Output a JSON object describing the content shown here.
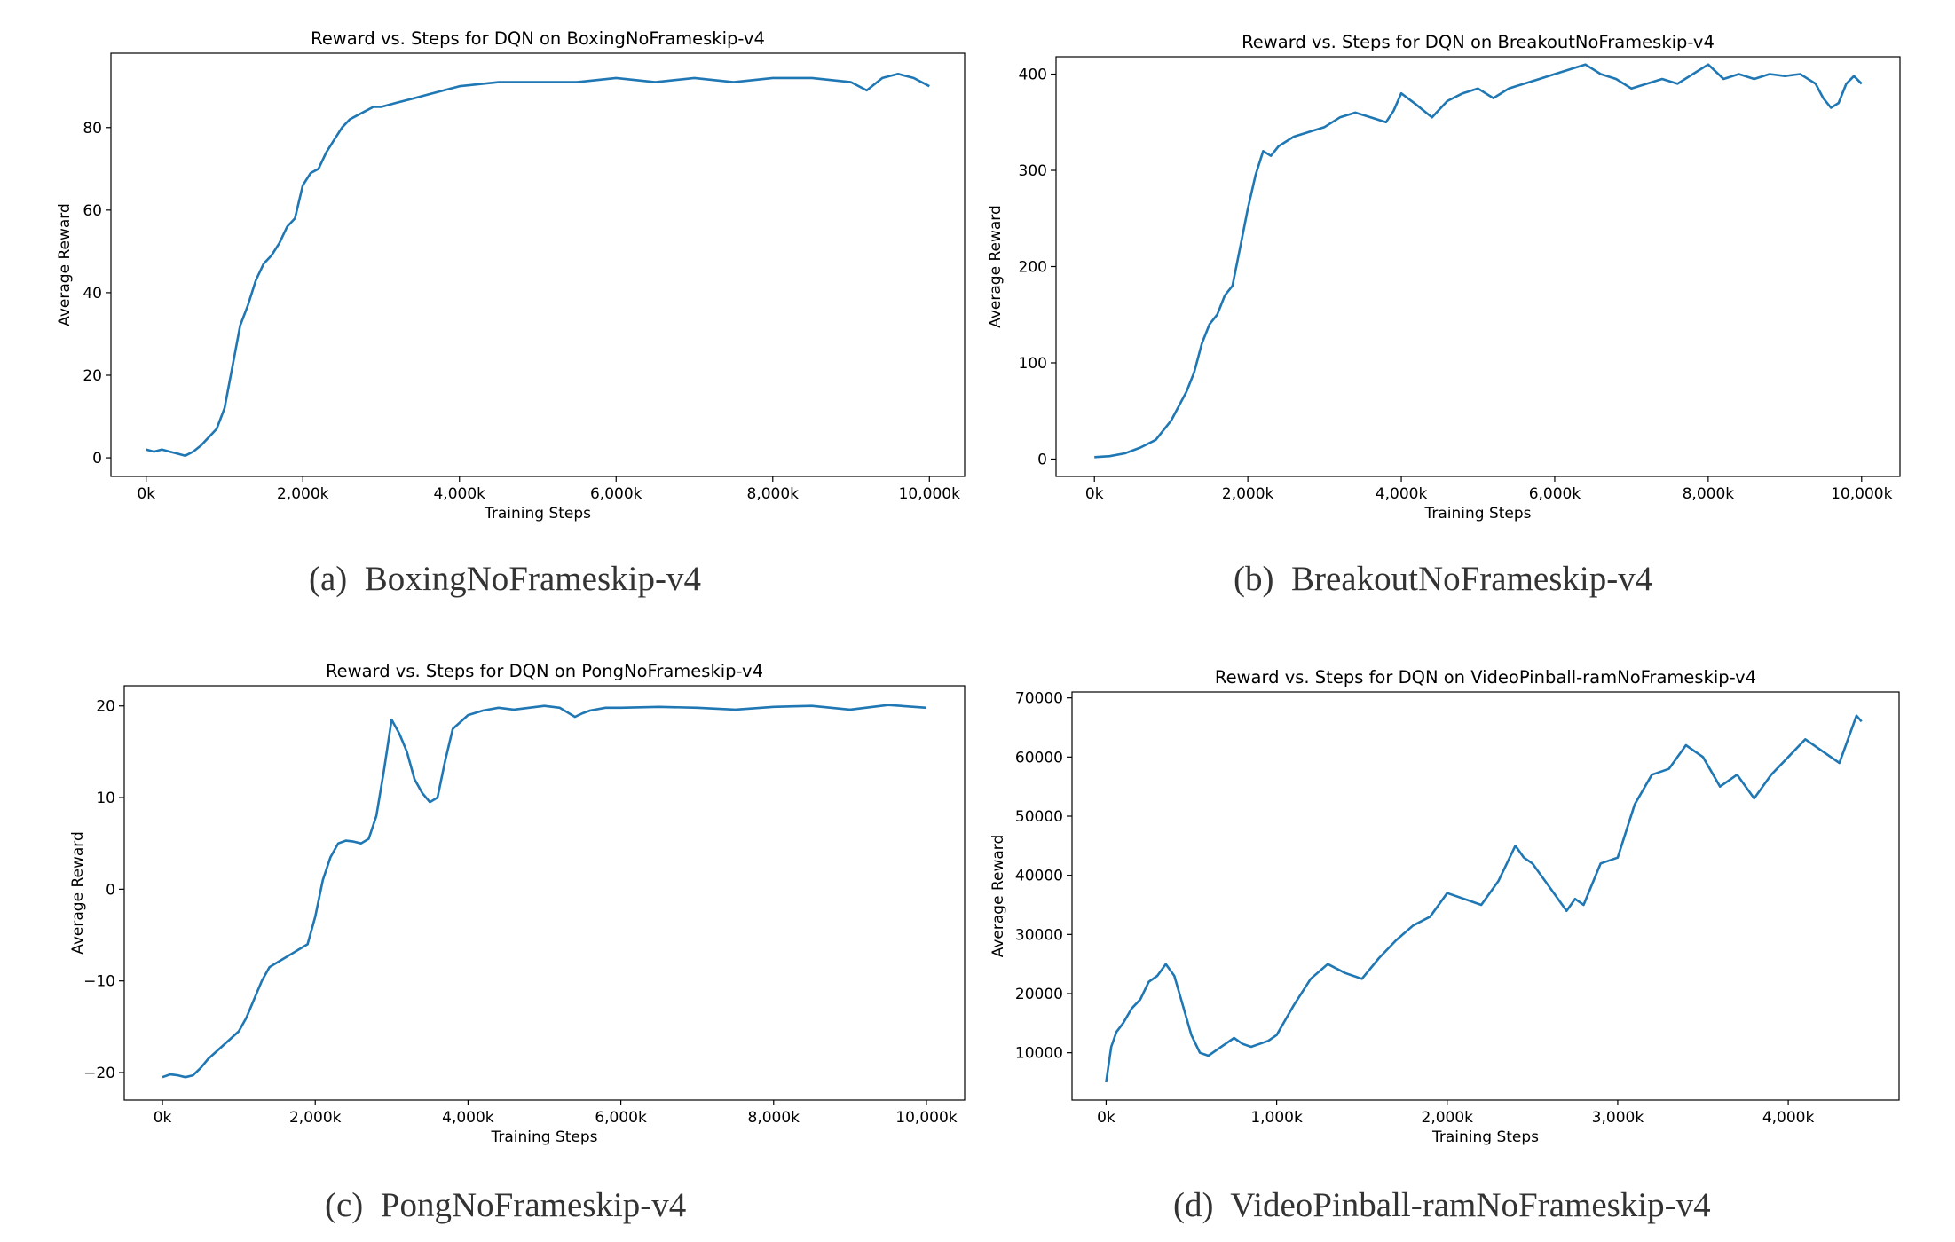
{
  "colors": {
    "line": "#1f77b4",
    "axes": "#000000",
    "caption": "#333333"
  },
  "captions": [
    {
      "tag": "(a)",
      "text": "BoxingNoFrameskip-v4"
    },
    {
      "tag": "(b)",
      "text": "BreakoutNoFrameskip-v4"
    },
    {
      "tag": "(c)",
      "text": "PongNoFrameskip-v4"
    },
    {
      "tag": "(d)",
      "text": "VideoPinball-ramNoFrameskip-v4"
    }
  ],
  "chart_data": [
    {
      "type": "line",
      "title": "Reward vs. Steps for DQN on BoxingNoFrameskip-v4",
      "xlabel": "Training Steps",
      "ylabel": "Average Reward",
      "xlim": [
        -450,
        10450
      ],
      "ylim": [
        -4.5,
        98
      ],
      "xticks": [
        0,
        2000,
        4000,
        6000,
        8000,
        10000
      ],
      "xtick_labels": [
        "0k",
        "2,000k",
        "4,000k",
        "6,000k",
        "8,000k",
        "10,000k"
      ],
      "yticks": [
        0,
        20,
        40,
        60,
        80
      ],
      "ytick_labels": [
        "0",
        "20",
        "40",
        "60",
        "80"
      ],
      "grid": false,
      "legend": "none",
      "series": [
        {
          "x": [
            0,
            100,
            200,
            300,
            400,
            500,
            600,
            700,
            800,
            900,
            1000,
            1100,
            1200,
            1300,
            1400,
            1500,
            1600,
            1700,
            1800,
            1900,
            2000,
            2100,
            2200,
            2300,
            2400,
            2500,
            2600,
            2700,
            2800,
            2900,
            3000,
            3200,
            3400,
            3600,
            3800,
            4000,
            4500,
            5000,
            5500,
            6000,
            6500,
            7000,
            7500,
            8000,
            8500,
            9000,
            9200,
            9400,
            9600,
            9800,
            10000
          ],
          "y": [
            2,
            1.5,
            2,
            1.5,
            1,
            0.5,
            1.5,
            3,
            5,
            7,
            12,
            22,
            32,
            37,
            43,
            47,
            49,
            52,
            56,
            58,
            66,
            69,
            70,
            74,
            77,
            80,
            82,
            83,
            84,
            85,
            85,
            86,
            87,
            88,
            89,
            90,
            91,
            91,
            91,
            92,
            91,
            92,
            91,
            92,
            92,
            91,
            89,
            92,
            93,
            92,
            90
          ]
        }
      ]
    },
    {
      "type": "line",
      "title": "Reward vs. Steps for DQN on BreakoutNoFrameskip-v4",
      "xlabel": "Training Steps",
      "ylabel": "Average Reward",
      "xlim": [
        -500,
        10500
      ],
      "ylim": [
        -18,
        418
      ],
      "xticks": [
        0,
        2000,
        4000,
        6000,
        8000,
        10000
      ],
      "xtick_labels": [
        "0k",
        "2,000k",
        "4,000k",
        "6,000k",
        "8,000k",
        "10,000k"
      ],
      "yticks": [
        0,
        100,
        200,
        300,
        400
      ],
      "ytick_labels": [
        "0",
        "100",
        "200",
        "300",
        "400"
      ],
      "grid": false,
      "legend": "none",
      "series": [
        {
          "x": [
            0,
            200,
            400,
            600,
            800,
            1000,
            1100,
            1200,
            1300,
            1400,
            1500,
            1600,
            1700,
            1800,
            1900,
            2000,
            2100,
            2200,
            2300,
            2400,
            2600,
            2800,
            3000,
            3200,
            3400,
            3600,
            3800,
            3900,
            4000,
            4200,
            4400,
            4600,
            4800,
            5000,
            5200,
            5400,
            5600,
            5800,
            6000,
            6200,
            6400,
            6600,
            6800,
            7000,
            7200,
            7400,
            7600,
            7800,
            8000,
            8200,
            8400,
            8600,
            8800,
            9000,
            9200,
            9400,
            9500,
            9600,
            9700,
            9800,
            9900,
            10000
          ],
          "y": [
            2,
            3,
            6,
            12,
            20,
            40,
            55,
            70,
            90,
            120,
            140,
            150,
            170,
            180,
            220,
            260,
            295,
            320,
            315,
            325,
            335,
            340,
            345,
            355,
            360,
            355,
            350,
            362,
            380,
            368,
            355,
            372,
            380,
            385,
            375,
            385,
            390,
            395,
            400,
            405,
            410,
            400,
            395,
            385,
            390,
            395,
            390,
            400,
            410,
            395,
            400,
            395,
            400,
            398,
            400,
            390,
            375,
            365,
            370,
            390,
            398,
            390
          ]
        }
      ]
    },
    {
      "type": "line",
      "title": "Reward vs. Steps for DQN on PongNoFrameskip-v4",
      "xlabel": "Training Steps",
      "ylabel": "Average Reward",
      "xlim": [
        -500,
        10500
      ],
      "ylim": [
        -23,
        22.2
      ],
      "xticks": [
        0,
        2000,
        4000,
        6000,
        8000,
        10000
      ],
      "xtick_labels": [
        "0k",
        "2,000k",
        "4,000k",
        "6,000k",
        "8,000k",
        "10,000k"
      ],
      "yticks": [
        -20,
        -10,
        0,
        10,
        20
      ],
      "ytick_labels": [
        "−20",
        "−10",
        "0",
        "10",
        "20"
      ],
      "grid": false,
      "legend": "none",
      "series": [
        {
          "x": [
            0,
            100,
            200,
            300,
            400,
            500,
            600,
            800,
            1000,
            1100,
            1200,
            1300,
            1400,
            1500,
            1600,
            1700,
            1800,
            1900,
            2000,
            2100,
            2200,
            2300,
            2400,
            2500,
            2600,
            2700,
            2800,
            2900,
            3000,
            3100,
            3200,
            3300,
            3400,
            3500,
            3600,
            3700,
            3800,
            4000,
            4200,
            4400,
            4600,
            4800,
            5000,
            5200,
            5400,
            5500,
            5600,
            5800,
            6000,
            6500,
            7000,
            7500,
            8000,
            8500,
            9000,
            9500,
            10000
          ],
          "y": [
            -20.5,
            -20.2,
            -20.3,
            -20.5,
            -20.3,
            -19.5,
            -18.5,
            -17,
            -15.5,
            -14,
            -12,
            -10,
            -8.5,
            -8,
            -7.5,
            -7,
            -6.5,
            -6,
            -3,
            1,
            3.5,
            5,
            5.3,
            5.2,
            5,
            5.5,
            8,
            13,
            18.5,
            17,
            15,
            12,
            10.5,
            9.5,
            10,
            14,
            17.5,
            19,
            19.5,
            19.8,
            19.6,
            19.8,
            20,
            19.8,
            18.8,
            19.2,
            19.5,
            19.8,
            19.8,
            19.9,
            19.8,
            19.6,
            19.9,
            20,
            19.6,
            20.1,
            19.8
          ]
        }
      ]
    },
    {
      "type": "line",
      "title": "Reward vs. Steps for DQN on VideoPinball-ramNoFrameskip-v4",
      "xlabel": "Training Steps",
      "ylabel": "Average Reward",
      "xlim": [
        -200,
        4650
      ],
      "ylim": [
        2000,
        71000
      ],
      "xticks": [
        0,
        1000,
        2000,
        3000,
        4000
      ],
      "xtick_labels": [
        "0k",
        "1,000k",
        "2,000k",
        "3,000k",
        "4,000k"
      ],
      "yticks": [
        10000,
        20000,
        30000,
        40000,
        50000,
        60000,
        70000
      ],
      "ytick_labels": [
        "10000",
        "20000",
        "30000",
        "40000",
        "50000",
        "60000",
        "70000"
      ],
      "grid": false,
      "legend": "none",
      "series": [
        {
          "x": [
            0,
            30,
            60,
            100,
            150,
            200,
            250,
            300,
            350,
            400,
            450,
            500,
            550,
            600,
            650,
            700,
            750,
            800,
            850,
            900,
            950,
            1000,
            1100,
            1200,
            1300,
            1400,
            1500,
            1600,
            1700,
            1800,
            1900,
            2000,
            2100,
            2200,
            2300,
            2350,
            2400,
            2450,
            2500,
            2600,
            2700,
            2750,
            2800,
            2900,
            3000,
            3100,
            3200,
            3300,
            3400,
            3450,
            3500,
            3600,
            3700,
            3800,
            3900,
            4000,
            4100,
            4200,
            4300,
            4350,
            4400,
            4430
          ],
          "y": [
            5000,
            11000,
            13500,
            15000,
            17500,
            19000,
            22000,
            23000,
            25000,
            23000,
            18000,
            13000,
            10000,
            9500,
            10500,
            11500,
            12500,
            11500,
            11000,
            11500,
            12000,
            13000,
            18000,
            22500,
            25000,
            23500,
            22500,
            26000,
            29000,
            31500,
            33000,
            37000,
            36000,
            35000,
            39000,
            42000,
            45000,
            43000,
            42000,
            38000,
            34000,
            36000,
            35000,
            42000,
            43000,
            52000,
            57000,
            58000,
            62000,
            61000,
            60000,
            55000,
            57000,
            53000,
            57000,
            60000,
            63000,
            61000,
            59000,
            63000,
            67000,
            66000
          ]
        }
      ]
    }
  ]
}
